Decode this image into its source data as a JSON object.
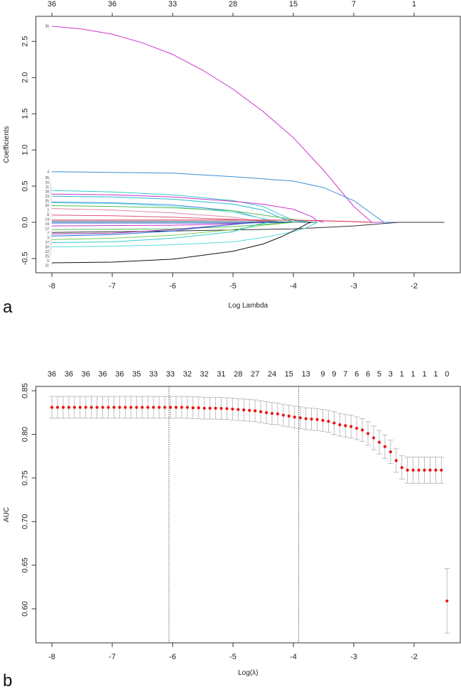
{
  "chart_data": [
    {
      "type": "line",
      "panel_label": "a",
      "title": "",
      "xlabel": "Log Lambda",
      "ylabel": "Coefficients",
      "xlim": [
        -8.264,
        -1.235
      ],
      "ylim": [
        -0.697,
        2.846
      ],
      "x_ticks": [
        -8,
        -7,
        -6,
        -5,
        -4,
        -3,
        -2
      ],
      "x_tick_labels": [
        "-8",
        "-7",
        "-6",
        "-5",
        "-4",
        "-3",
        "-2"
      ],
      "y_ticks": [
        -0.5,
        0.0,
        0.5,
        1.0,
        1.5,
        2.0,
        2.5
      ],
      "y_tick_labels": [
        "-0.5",
        "0.0",
        "0.5",
        "1.0",
        "1.5",
        "2.0",
        "2.5"
      ],
      "top_axis": {
        "at": [
          -8,
          -7,
          -6,
          -5,
          -4,
          -3,
          -2
        ],
        "labels": [
          "36",
          "36",
          "33",
          "28",
          "15",
          "7",
          "1"
        ]
      },
      "grid": false,
      "series": [
        {
          "name": "36",
          "color": "#cc33cc",
          "points": [
            [
              -8,
              2.71
            ],
            [
              -7.5,
              2.67
            ],
            [
              -7,
              2.6
            ],
            [
              -6.5,
              2.48
            ],
            [
              -6,
              2.32
            ],
            [
              -5.5,
              2.1
            ],
            [
              -5,
              1.84
            ],
            [
              -4.5,
              1.53
            ],
            [
              -4,
              1.17
            ],
            [
              -3.5,
              0.72
            ],
            [
              -3,
              0.22
            ],
            [
              -2.7,
              0
            ],
            [
              -1.5,
              0
            ]
          ]
        },
        {
          "name": "4",
          "color": "#3b8fd8",
          "points": [
            [
              -8,
              0.7
            ],
            [
              -7,
              0.69
            ],
            [
              -6,
              0.68
            ],
            [
              -5,
              0.63
            ],
            [
              -4.5,
              0.6
            ],
            [
              -4,
              0.57
            ],
            [
              -3.5,
              0.48
            ],
            [
              -3,
              0.3
            ],
            [
              -2.8,
              0.18
            ],
            [
              -2.5,
              0
            ],
            [
              -1.5,
              0
            ]
          ]
        },
        {
          "name": "35",
          "color": "#33cccc",
          "points": [
            [
              -8,
              0.44
            ],
            [
              -7,
              0.42
            ],
            [
              -6,
              0.38
            ],
            [
              -5,
              0.3
            ],
            [
              -4.5,
              0.22
            ],
            [
              -4.2,
              0.1
            ],
            [
              -4,
              0.03
            ],
            [
              -3.8,
              0
            ]
          ]
        },
        {
          "name": "16",
          "color": "#cc33cc",
          "points": [
            [
              -8,
              0.39
            ],
            [
              -7,
              0.38
            ],
            [
              -6,
              0.35
            ],
            [
              -5,
              0.29
            ],
            [
              -4.5,
              0.25
            ],
            [
              -4,
              0.18
            ],
            [
              -3.7,
              0.08
            ],
            [
              -3.6,
              0.02
            ],
            [
              -3.5,
              0
            ]
          ]
        },
        {
          "name": "11",
          "color": "#22bbcc",
          "points": [
            [
              -8,
              0.36
            ],
            [
              -7,
              0.35
            ],
            [
              -6,
              0.32
            ],
            [
              -5,
              0.25
            ],
            [
              -4.5,
              0.17
            ],
            [
              -4.2,
              0.06
            ],
            [
              -4,
              0
            ]
          ]
        },
        {
          "name": "28",
          "color": "#3b8fd8",
          "points": [
            [
              -8,
              0.28
            ],
            [
              -7,
              0.27
            ],
            [
              -6,
              0.24
            ],
            [
              -5,
              0.16
            ],
            [
              -4.6,
              0.07
            ],
            [
              -4.3,
              0
            ]
          ]
        },
        {
          "name": "23",
          "color": "#66dddd",
          "points": [
            [
              -8,
              0.27
            ],
            [
              -7,
              0.26
            ],
            [
              -6,
              0.22
            ],
            [
              -5,
              0.14
            ],
            [
              -4.5,
              0.05
            ],
            [
              -4.2,
              0
            ]
          ]
        },
        {
          "name": "26",
          "color": "#55bb55",
          "points": [
            [
              -8,
              0.23
            ],
            [
              -7,
              0.22
            ],
            [
              -6,
              0.2
            ],
            [
              -5,
              0.16
            ],
            [
              -4.5,
              0.1
            ],
            [
              -4,
              0.04
            ],
            [
              -3.7,
              0
            ]
          ]
        },
        {
          "name": "20",
          "color": "#e08aa8",
          "points": [
            [
              -8,
              0.19
            ],
            [
              -7,
              0.17
            ],
            [
              -6,
              0.13
            ],
            [
              -5,
              0.07
            ],
            [
              -4.6,
              0.02
            ],
            [
              -4.4,
              0
            ]
          ]
        },
        {
          "name": "2",
          "color": "#dd5577",
          "points": [
            [
              -8,
              0.1
            ],
            [
              -7,
              0.09
            ],
            [
              -6,
              0.07
            ],
            [
              -5,
              0.04
            ],
            [
              -4.3,
              0.01
            ],
            [
              -4,
              0
            ]
          ]
        },
        {
          "name": "8",
          "color": "#cc2244",
          "points": [
            [
              -8,
              0.03
            ],
            [
              -5,
              0.03
            ],
            [
              -4,
              0.03
            ],
            [
              -3.5,
              0.02
            ],
            [
              -3,
              0.01
            ],
            [
              -2.7,
              0
            ]
          ]
        },
        {
          "name": "14",
          "color": "#116677",
          "points": [
            [
              -8,
              0.01
            ],
            [
              -6,
              0.01
            ],
            [
              -4,
              0.005
            ],
            [
              -3.6,
              0
            ]
          ]
        },
        {
          "name": "19",
          "color": "#2255cc",
          "points": [
            [
              -8,
              -0.01
            ],
            [
              -5,
              -0.01
            ],
            [
              -4,
              0
            ]
          ]
        },
        {
          "name": "12",
          "color": "#cc33cc",
          "points": [
            [
              -8,
              -0.05
            ],
            [
              -6,
              -0.04
            ],
            [
              -5,
              -0.02
            ],
            [
              -4.5,
              0
            ]
          ]
        },
        {
          "name": "7",
          "color": "#55bb55",
          "points": [
            [
              -8,
              -0.1
            ],
            [
              -6,
              -0.09
            ],
            [
              -5,
              -0.06
            ],
            [
              -4.5,
              -0.03
            ],
            [
              -4,
              0
            ]
          ]
        },
        {
          "name": "3",
          "color": "#333333",
          "points": [
            [
              -8,
              -0.14
            ],
            [
              -6,
              -0.12
            ],
            [
              -4,
              -0.09
            ],
            [
              -3,
              -0.05
            ],
            [
              -2.25,
              0
            ],
            [
              -1.5,
              0
            ]
          ]
        },
        {
          "name": "27",
          "color": "#9933aa",
          "points": [
            [
              -8,
              -0.16
            ],
            [
              -7,
              -0.15
            ],
            [
              -6,
              -0.1
            ],
            [
              -5,
              -0.03
            ],
            [
              -4.7,
              0
            ]
          ]
        },
        {
          "name": "30",
          "color": "#2266dd",
          "points": [
            [
              -8,
              -0.19
            ],
            [
              -7,
              -0.17
            ],
            [
              -6,
              -0.12
            ],
            [
              -5.5,
              -0.07
            ],
            [
              -5,
              -0.03
            ],
            [
              -4.6,
              0
            ]
          ]
        },
        {
          "name": "22",
          "color": "#77cc55",
          "points": [
            [
              -8,
              -0.24
            ],
            [
              -7,
              -0.22
            ],
            [
              -6,
              -0.18
            ],
            [
              -5,
              -0.1
            ],
            [
              -4.5,
              -0.04
            ],
            [
              -4,
              0
            ]
          ]
        },
        {
          "name": "25",
          "color": "#33cccc",
          "points": [
            [
              -8,
              -0.28
            ],
            [
              -7,
              -0.27
            ],
            [
              -6,
              -0.22
            ],
            [
              -5,
              -0.13
            ],
            [
              -4.6,
              -0.03
            ],
            [
              -4.4,
              0
            ]
          ]
        },
        {
          "name": "5",
          "color": "#55dddd",
          "points": [
            [
              -8,
              -0.34
            ],
            [
              -7,
              -0.33
            ],
            [
              -6,
              -0.31
            ],
            [
              -5,
              -0.27
            ],
            [
              -4.5,
              -0.21
            ],
            [
              -4,
              -0.13
            ],
            [
              -3.8,
              -0.08
            ],
            [
              -3.6,
              0
            ]
          ]
        },
        {
          "name": "31",
          "color": "#111111",
          "points": [
            [
              -8,
              -0.56
            ],
            [
              -7,
              -0.55
            ],
            [
              -6,
              -0.51
            ],
            [
              -5,
              -0.4
            ],
            [
              -4.5,
              -0.3
            ],
            [
              -4.2,
              -0.2
            ],
            [
              -3.9,
              -0.08
            ],
            [
              -3.75,
              -0.01
            ],
            [
              -3.7,
              0
            ]
          ]
        }
      ]
    },
    {
      "type": "scatter",
      "panel_label": "b",
      "title": "",
      "xlabel": "Log(λ)",
      "ylabel": "AUC",
      "xlim": [
        -8.264,
        -1.235
      ],
      "ylim": [
        0.561,
        0.855
      ],
      "x_ticks": [
        -8,
        -7,
        -6,
        -5,
        -4,
        -3,
        -2
      ],
      "x_tick_labels": [
        "-8",
        "-7",
        "-6",
        "-5",
        "-4",
        "-3",
        "-2"
      ],
      "y_ticks": [
        0.6,
        0.65,
        0.7,
        0.75,
        0.8,
        0.85
      ],
      "y_tick_labels": [
        "0.60",
        "0.65",
        "0.70",
        "0.75",
        "0.80",
        "0.85"
      ],
      "grid": false,
      "x_start": -8,
      "x_step": 0.0935,
      "auc": [
        0.831,
        0.831,
        0.831,
        0.831,
        0.831,
        0.831,
        0.831,
        0.831,
        0.831,
        0.831,
        0.831,
        0.831,
        0.831,
        0.831,
        0.831,
        0.831,
        0.831,
        0.831,
        0.831,
        0.831,
        0.831,
        0.831,
        0.831,
        0.831,
        0.831,
        0.8305,
        0.8305,
        0.83,
        0.83,
        0.83,
        0.8298,
        0.8295,
        0.829,
        0.8285,
        0.828,
        0.8275,
        0.827,
        0.826,
        0.825,
        0.824,
        0.8235,
        0.822,
        0.821,
        0.8198,
        0.819,
        0.818,
        0.8175,
        0.817,
        0.816,
        0.815,
        0.813,
        0.811,
        0.81,
        0.809,
        0.807,
        0.805,
        0.801,
        0.796,
        0.791,
        0.786,
        0.78,
        0.77,
        0.762,
        0.759,
        0.759,
        0.759,
        0.759,
        0.759,
        0.759,
        0.759,
        0.609
      ],
      "se": [
        0.0125,
        0.0125,
        0.0125,
        0.0125,
        0.0125,
        0.0125,
        0.0125,
        0.0125,
        0.0125,
        0.0125,
        0.0125,
        0.0125,
        0.0125,
        0.0125,
        0.0125,
        0.0125,
        0.0125,
        0.0125,
        0.0125,
        0.0125,
        0.0125,
        0.0125,
        0.0125,
        0.0125,
        0.0125,
        0.0125,
        0.0125,
        0.0125,
        0.0125,
        0.0125,
        0.0125,
        0.0125,
        0.0125,
        0.0125,
        0.0125,
        0.0125,
        0.0125,
        0.0125,
        0.0125,
        0.0125,
        0.0125,
        0.0125,
        0.0125,
        0.0125,
        0.0125,
        0.0125,
        0.0125,
        0.0125,
        0.0125,
        0.0125,
        0.013,
        0.013,
        0.013,
        0.013,
        0.013,
        0.013,
        0.0135,
        0.0135,
        0.0135,
        0.0135,
        0.0135,
        0.0135,
        0.0135,
        0.015,
        0.015,
        0.015,
        0.015,
        0.015,
        0.015,
        0.015,
        0.037
      ],
      "point_color": "#ee1111",
      "errorbar_color": "#b0b0b0",
      "vlines": [
        -6.06,
        -3.91
      ],
      "top_axis": {
        "at_index": [
          0,
          3,
          6,
          9,
          12,
          15,
          18,
          21,
          24,
          27,
          30,
          33,
          36,
          39,
          42,
          45,
          48,
          50,
          52,
          54,
          56,
          58,
          60,
          62,
          64,
          66,
          68,
          70
        ],
        "labels": [
          "36",
          "36",
          "36",
          "36",
          "36",
          "35",
          "33",
          "33",
          "32",
          "32",
          "31",
          "28",
          "27",
          "24",
          "15",
          "13",
          "9",
          "9",
          "7",
          "6",
          "6",
          "5",
          "3",
          "1",
          "1",
          "1",
          "1",
          "0"
        ]
      }
    }
  ]
}
